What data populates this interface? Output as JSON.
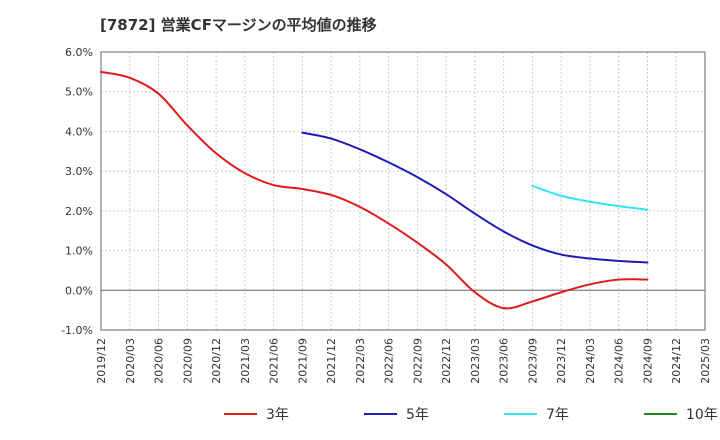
{
  "chart_data": {
    "type": "line",
    "title": "[7872]  営業CFマージンの平均値の推移",
    "xlabel": "",
    "ylabel": "",
    "ylim": [
      -1.0,
      6.0
    ],
    "yticks": [
      "6.0%",
      "5.0%",
      "4.0%",
      "3.0%",
      "2.0%",
      "1.0%",
      "0.0%",
      "-1.0%"
    ],
    "categories": [
      "2019/12",
      "2020/03",
      "2020/06",
      "2020/09",
      "2020/12",
      "2021/03",
      "2021/06",
      "2021/09",
      "2021/12",
      "2022/03",
      "2022/06",
      "2022/09",
      "2022/12",
      "2023/03",
      "2023/06",
      "2023/09",
      "2023/12",
      "2024/03",
      "2024/06",
      "2024/09",
      "2024/12",
      "2025/03"
    ],
    "grid": true,
    "legend_position": "bottom",
    "series": [
      {
        "name": "3年",
        "color": "#e0191b",
        "values": [
          5.5,
          5.35,
          4.95,
          4.15,
          3.45,
          2.95,
          2.65,
          2.55,
          2.4,
          2.1,
          1.68,
          1.2,
          0.65,
          -0.05,
          -0.45,
          -0.28,
          -0.05,
          0.15,
          0.27,
          0.27,
          null,
          null
        ]
      },
      {
        "name": "5年",
        "color": "#1c1cb8",
        "values": [
          null,
          null,
          null,
          null,
          null,
          null,
          null,
          3.97,
          3.82,
          3.55,
          3.22,
          2.85,
          2.42,
          1.93,
          1.48,
          1.13,
          0.9,
          0.8,
          0.74,
          0.7,
          null,
          null
        ]
      },
      {
        "name": "7年",
        "color": "#33e5f0",
        "values": [
          null,
          null,
          null,
          null,
          null,
          null,
          null,
          null,
          null,
          null,
          null,
          null,
          null,
          null,
          null,
          2.63,
          2.38,
          2.23,
          2.12,
          2.03,
          null,
          null
        ]
      },
      {
        "name": "10年",
        "color": "#1e8a1e",
        "values": [
          null,
          null,
          null,
          null,
          null,
          null,
          null,
          null,
          null,
          null,
          null,
          null,
          null,
          null,
          null,
          null,
          null,
          null,
          null,
          null,
          null,
          null
        ]
      }
    ]
  }
}
